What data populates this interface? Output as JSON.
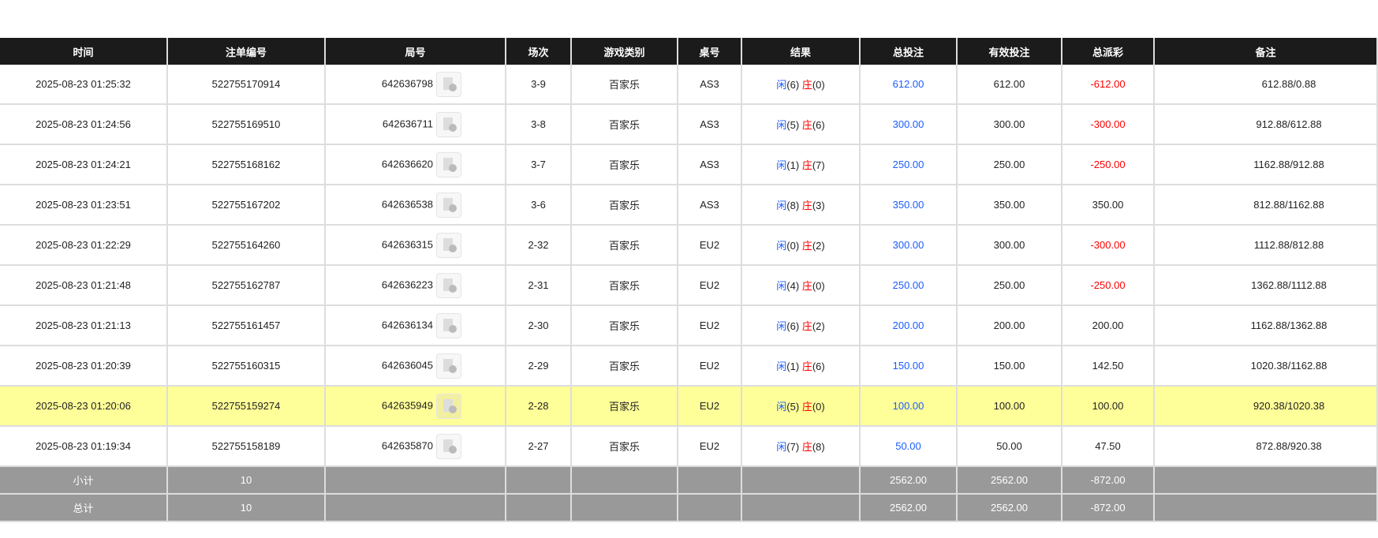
{
  "headers": [
    "时间",
    "注单编号",
    "局号",
    "场次",
    "游戏类别",
    "桌号",
    "结果",
    "总投注",
    "有效投注",
    "总派彩",
    "备注"
  ],
  "result_labels": {
    "player": "闲",
    "banker": "庄"
  },
  "rows": [
    {
      "time": "2025-08-23 01:25:32",
      "bet_id": "522755170914",
      "round": "642636798",
      "shoe": "3-9",
      "game": "百家乐",
      "table": "AS3",
      "p": "(6)",
      "b": "(0)",
      "bet": "612.00",
      "valid": "612.00",
      "payout": "-612.00",
      "neg": true,
      "remark": "612.88/0.88"
    },
    {
      "time": "2025-08-23 01:24:56",
      "bet_id": "522755169510",
      "round": "642636711",
      "shoe": "3-8",
      "game": "百家乐",
      "table": "AS3",
      "p": "(5)",
      "b": "(6)",
      "bet": "300.00",
      "valid": "300.00",
      "payout": "-300.00",
      "neg": true,
      "remark": "912.88/612.88"
    },
    {
      "time": "2025-08-23 01:24:21",
      "bet_id": "522755168162",
      "round": "642636620",
      "shoe": "3-7",
      "game": "百家乐",
      "table": "AS3",
      "p": "(1)",
      "b": "(7)",
      "bet": "250.00",
      "valid": "250.00",
      "payout": "-250.00",
      "neg": true,
      "remark": "1162.88/912.88"
    },
    {
      "time": "2025-08-23 01:23:51",
      "bet_id": "522755167202",
      "round": "642636538",
      "shoe": "3-6",
      "game": "百家乐",
      "table": "AS3",
      "p": "(8)",
      "b": "(3)",
      "bet": "350.00",
      "valid": "350.00",
      "payout": "350.00",
      "neg": false,
      "remark": "812.88/1162.88"
    },
    {
      "time": "2025-08-23 01:22:29",
      "bet_id": "522755164260",
      "round": "642636315",
      "shoe": "2-32",
      "game": "百家乐",
      "table": "EU2",
      "p": "(0)",
      "b": "(2)",
      "bet": "300.00",
      "valid": "300.00",
      "payout": "-300.00",
      "neg": true,
      "remark": "1112.88/812.88"
    },
    {
      "time": "2025-08-23 01:21:48",
      "bet_id": "522755162787",
      "round": "642636223",
      "shoe": "2-31",
      "game": "百家乐",
      "table": "EU2",
      "p": "(4)",
      "b": "(0)",
      "bet": "250.00",
      "valid": "250.00",
      "payout": "-250.00",
      "neg": true,
      "remark": "1362.88/1112.88"
    },
    {
      "time": "2025-08-23 01:21:13",
      "bet_id": "522755161457",
      "round": "642636134",
      "shoe": "2-30",
      "game": "百家乐",
      "table": "EU2",
      "p": "(6)",
      "b": "(2)",
      "bet": "200.00",
      "valid": "200.00",
      "payout": "200.00",
      "neg": false,
      "remark": "1162.88/1362.88"
    },
    {
      "time": "2025-08-23 01:20:39",
      "bet_id": "522755160315",
      "round": "642636045",
      "shoe": "2-29",
      "game": "百家乐",
      "table": "EU2",
      "p": "(1)",
      "b": "(6)",
      "bet": "150.00",
      "valid": "150.00",
      "payout": "142.50",
      "neg": false,
      "remark": "1020.38/1162.88"
    },
    {
      "time": "2025-08-23 01:20:06",
      "bet_id": "522755159274",
      "round": "642635949",
      "shoe": "2-28",
      "game": "百家乐",
      "table": "EU2",
      "p": "(5)",
      "b": "(0)",
      "bet": "100.00",
      "valid": "100.00",
      "payout": "100.00",
      "neg": false,
      "remark": "920.38/1020.38",
      "highlight": true
    },
    {
      "time": "2025-08-23 01:19:34",
      "bet_id": "522755158189",
      "round": "642635870",
      "shoe": "2-27",
      "game": "百家乐",
      "table": "EU2",
      "p": "(7)",
      "b": "(8)",
      "bet": "50.00",
      "valid": "50.00",
      "payout": "47.50",
      "neg": false,
      "remark": "872.88/920.38"
    }
  ],
  "footer": [
    {
      "label": "小计",
      "count": "10",
      "bet": "2562.00",
      "valid": "2562.00",
      "payout": "-872.00"
    },
    {
      "label": "总计",
      "count": "10",
      "bet": "2562.00",
      "valid": "2562.00",
      "payout": "-872.00"
    }
  ],
  "colors": {
    "header_bg": "#1b1b1b",
    "highlight": "#ffff99",
    "footer_bg": "#999999",
    "blue": "#1a5cff",
    "red": "#ff0000"
  }
}
